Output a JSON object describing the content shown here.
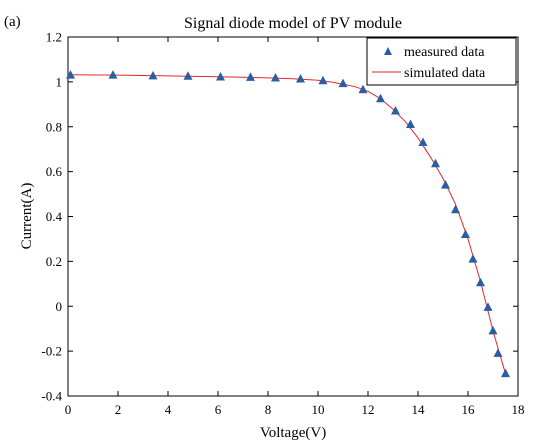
{
  "chart_data": {
    "type": "line",
    "panel_label": "(a)",
    "title": "Signal diode model of PV module",
    "xlabel": "Voltage(V)",
    "ylabel": "Current(A)",
    "xlim": [
      0,
      18
    ],
    "ylim": [
      -0.4,
      1.2
    ],
    "xticks": [
      "0",
      "2",
      "4",
      "6",
      "8",
      "10",
      "12",
      "14",
      "16",
      "18"
    ],
    "yticks": [
      "-0.4",
      "-0.2",
      "0",
      "0.2",
      "0.4",
      "0.6",
      "0.8",
      "1",
      "1.2"
    ],
    "grid": false,
    "legend_position": "top-right",
    "series": [
      {
        "name": "measured data",
        "style": "markers",
        "marker": "triangle",
        "color": "#2a5ea3",
        "x": [
          0.1,
          1.8,
          3.4,
          4.8,
          6.1,
          7.3,
          8.3,
          9.3,
          10.2,
          11.0,
          11.8,
          12.5,
          13.1,
          13.7,
          14.2,
          14.7,
          15.1,
          15.5,
          15.9,
          16.2,
          16.5,
          16.8,
          17.0,
          17.2,
          17.5
        ],
        "y": [
          1.03,
          1.03,
          1.027,
          1.025,
          1.022,
          1.02,
          1.017,
          1.013,
          1.005,
          0.992,
          0.965,
          0.925,
          0.87,
          0.81,
          0.73,
          0.635,
          0.54,
          0.43,
          0.32,
          0.21,
          0.105,
          -0.005,
          -0.11,
          -0.21,
          -0.3
        ]
      },
      {
        "name": "simulated data",
        "style": "line",
        "color": "#e8262a",
        "x": [
          0.0,
          2.0,
          4.0,
          6.0,
          8.0,
          9.0,
          10.0,
          10.5,
          11.0,
          11.5,
          12.0,
          12.5,
          13.0,
          13.5,
          14.0,
          14.5,
          15.0,
          15.5,
          16.0,
          16.5,
          17.0,
          17.3,
          17.5
        ],
        "y": [
          1.032,
          1.03,
          1.027,
          1.023,
          1.018,
          1.014,
          1.007,
          1.0,
          0.99,
          0.978,
          0.958,
          0.925,
          0.878,
          0.822,
          0.75,
          0.665,
          0.57,
          0.455,
          0.3,
          0.11,
          -0.11,
          -0.225,
          -0.3
        ]
      }
    ]
  }
}
